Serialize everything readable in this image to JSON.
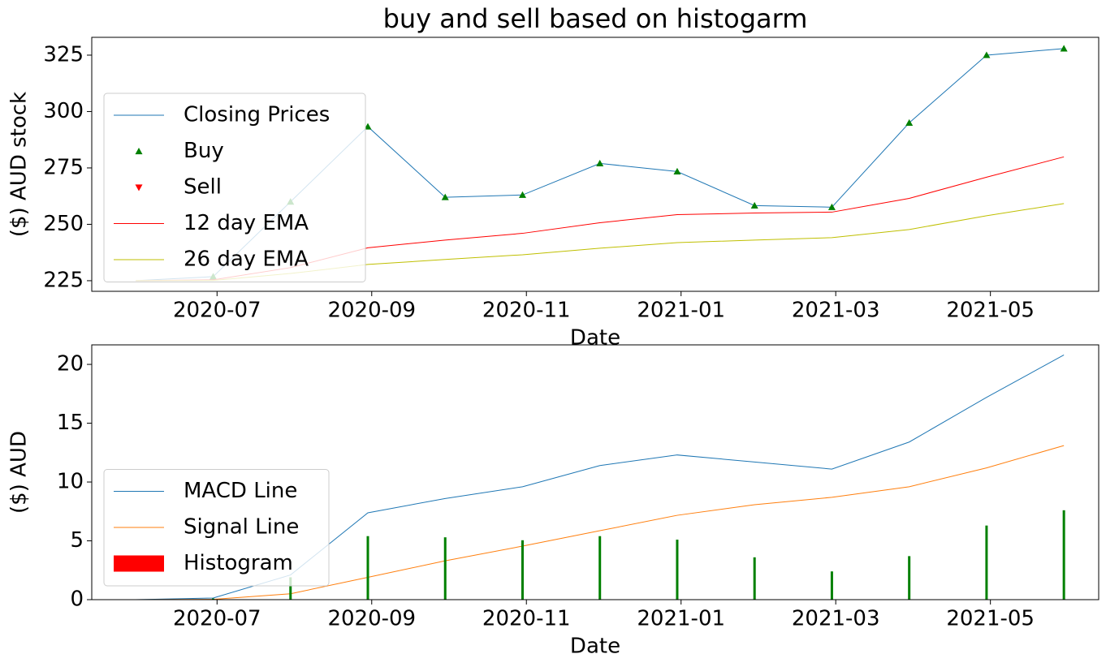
{
  "chart_data": [
    {
      "type": "line",
      "title": "buy and sell based on histogarm",
      "xlabel": "Date",
      "ylabel": "($) AUD stock",
      "x": [
        "2020-05",
        "2020-06",
        "2020-07",
        "2020-08",
        "2020-09",
        "2020-10",
        "2020-11",
        "2020-12",
        "2021-01",
        "2021-02",
        "2021-03",
        "2021-04",
        "2021-05"
      ],
      "xlim": [
        "2020-05",
        "2021-06"
      ],
      "xticks": [
        "2020-07",
        "2020-09",
        "2020-11",
        "2021-01",
        "2021-03",
        "2021-05"
      ],
      "ylim": [
        220.3,
        332.9
      ],
      "yticks": [
        225,
        250,
        275,
        300,
        325
      ],
      "legend": "center left",
      "series": [
        {
          "name": "Closing Prices",
          "type": "line",
          "color": "#1f77b4",
          "values": [
            225,
            226.8,
            260,
            293.3,
            262,
            263,
            277,
            273.4,
            258.3,
            257.6,
            295,
            325,
            327.9
          ]
        },
        {
          "name": "Buy",
          "type": "scatter",
          "marker": "^",
          "color": "#008000",
          "values": [
            null,
            226.8,
            260,
            293.3,
            262,
            263,
            277,
            273.4,
            258.3,
            257.6,
            295,
            325,
            327.9
          ]
        },
        {
          "name": "Sell",
          "type": "scatter",
          "marker": "v",
          "color": "#ff0000",
          "values": [
            null,
            null,
            null,
            null,
            null,
            null,
            null,
            null,
            null,
            null,
            null,
            null,
            null
          ]
        },
        {
          "name": "12 day EMA",
          "type": "line",
          "color": "#ff0000",
          "values": [
            225,
            225.4,
            230.8,
            239.6,
            243,
            246,
            250.7,
            254.3,
            255,
            255.4,
            261.5,
            270.9,
            279.9
          ]
        },
        {
          "name": "26 day EMA",
          "type": "line",
          "color": "#bfbf00",
          "values": [
            225,
            225.1,
            228.2,
            232.2,
            234.4,
            236.5,
            239.4,
            241.9,
            243,
            244.1,
            247.7,
            253.8,
            259.2
          ]
        }
      ]
    },
    {
      "type": "line",
      "xlabel": "Date",
      "ylabel": "($) AUD",
      "x": [
        "2020-05",
        "2020-06",
        "2020-07",
        "2020-08",
        "2020-09",
        "2020-10",
        "2020-11",
        "2020-12",
        "2021-01",
        "2021-02",
        "2021-03",
        "2021-04",
        "2021-05"
      ],
      "xlim": [
        "2020-05",
        "2021-06"
      ],
      "xticks": [
        "2020-07",
        "2020-09",
        "2020-11",
        "2021-01",
        "2021-03",
        "2021-05"
      ],
      "ylim": [
        0,
        21.66
      ],
      "yticks": [
        0,
        5,
        10,
        15,
        20
      ],
      "legend": "lower left",
      "series": [
        {
          "name": "MACD Line",
          "type": "line",
          "color": "#1f77b4",
          "values": [
            0,
            0.14,
            2.1,
            7.38,
            8.6,
            9.6,
            11.4,
            12.3,
            11.7,
            11.1,
            13.4,
            17.2,
            20.8
          ]
        },
        {
          "name": "Signal Line",
          "type": "line",
          "color": "#ff7f0e",
          "values": [
            0,
            0.03,
            0.5,
            1.9,
            3.3,
            4.55,
            5.86,
            7.17,
            8.07,
            8.7,
            9.6,
            11.2,
            13.1
          ]
        },
        {
          "name": "Histogram",
          "type": "bar",
          "color": "#ff0000",
          "bar_color": "#008000",
          "values": [
            0,
            0.1,
            1.9,
            5.4,
            5.3,
            5.05,
            5.4,
            5.1,
            3.6,
            2.4,
            3.7,
            6.3,
            7.6
          ]
        }
      ]
    }
  ]
}
